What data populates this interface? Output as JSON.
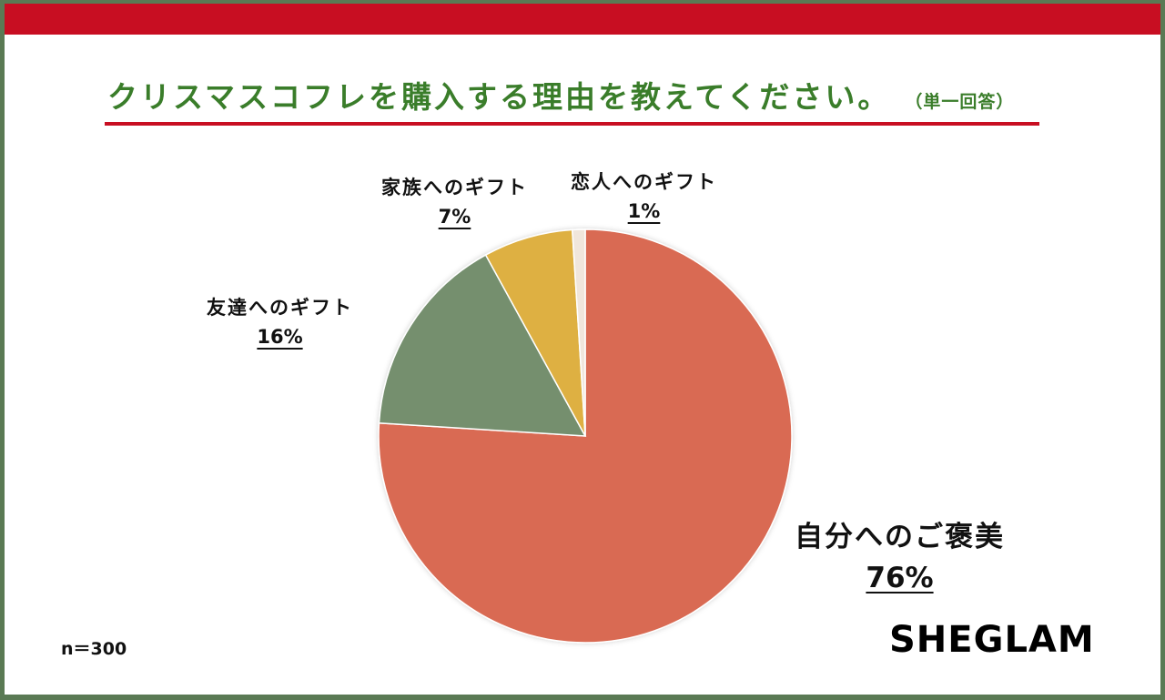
{
  "title": {
    "main": "クリスマスコフレを購入する理由を教えてください。",
    "sub": "（単一回答）"
  },
  "colors": {
    "frame": "#5a7a54",
    "band": "#c80e22",
    "title": "#3a7d2a",
    "self_reward": "#d96a52",
    "friends": "#748f6e",
    "family": "#deb043",
    "partner": "#f0e6dc"
  },
  "labels": {
    "partner": {
      "name": "恋人へのギフト",
      "pct": "1%"
    },
    "family": {
      "name": "家族へのギフト",
      "pct": "7%"
    },
    "friends": {
      "name": "友達へのギフト",
      "pct": "16%"
    },
    "self_reward": {
      "name": "自分へのご褒美",
      "pct": "76%"
    }
  },
  "footer": {
    "sample_size": "n＝300",
    "brand": "SHEGLAM"
  },
  "chart_data": {
    "type": "pie",
    "title": "クリスマスコフレを購入する理由を教えてください。（単一回答）",
    "categories": [
      "自分へのご褒美",
      "友達へのギフト",
      "家族へのギフト",
      "恋人へのギフト"
    ],
    "values": [
      76,
      16,
      7,
      1
    ],
    "unit": "%",
    "start_angle": "12 o'clock",
    "direction": "clockwise",
    "colors": [
      "#d96a52",
      "#748f6e",
      "#deb043",
      "#f0e6dc"
    ],
    "n": 300,
    "legend": "none (direct labels)"
  }
}
